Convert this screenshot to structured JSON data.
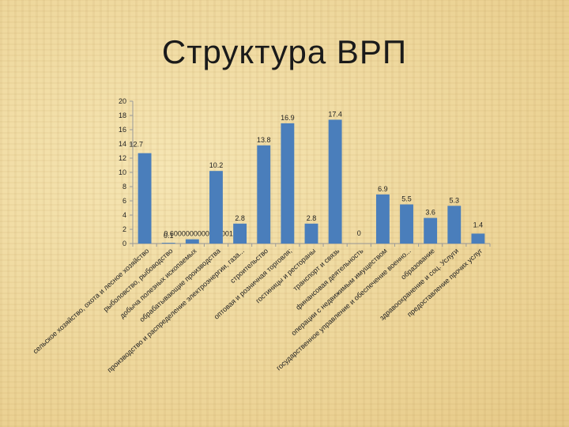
{
  "slide": {
    "title": "Структура ВРП"
  },
  "colors": {
    "bar": "#4a7ebb",
    "axis": "#9a9a9a",
    "text": "#222222"
  },
  "chart_data": {
    "type": "bar",
    "title": "",
    "xlabel": "",
    "ylabel": "",
    "ylim": [
      0,
      20
    ],
    "yticks": [
      0,
      2,
      4,
      6,
      8,
      10,
      12,
      14,
      16,
      18,
      20
    ],
    "grid": false,
    "legend": "none",
    "categories": [
      "сельское хозяйство, охота и лесное хозяйство",
      "рыболовство, рыбоводство",
      "добыча полезных ископаемых",
      "обрабатывающие производства",
      "производство и распределение электроэнергии, газа...",
      "строительство",
      "оптовая и розничная торговля;",
      "гостиницы и рестораны",
      "транспорт и связь",
      "финансовая деятельность",
      "операции с недвижимым имуществом",
      "государственное управление и обеспечение военно...",
      "образование",
      "здравоохранение и соц. Услуги",
      "предоставление прочих услуг"
    ],
    "values": [
      12.7,
      0.1,
      0.6,
      10.2,
      2.8,
      13.8,
      16.9,
      2.8,
      17.4,
      0,
      6.9,
      5.5,
      3.6,
      5.3,
      1.4
    ],
    "value_labels": [
      "12.7",
      "0.1",
      "0.6000000000000001",
      "10.2",
      "2.8",
      "13.8",
      "16.9",
      "2.8",
      "17.4",
      "0",
      "6.9",
      "5.5",
      "3.6",
      "5.3",
      "1.4"
    ]
  }
}
